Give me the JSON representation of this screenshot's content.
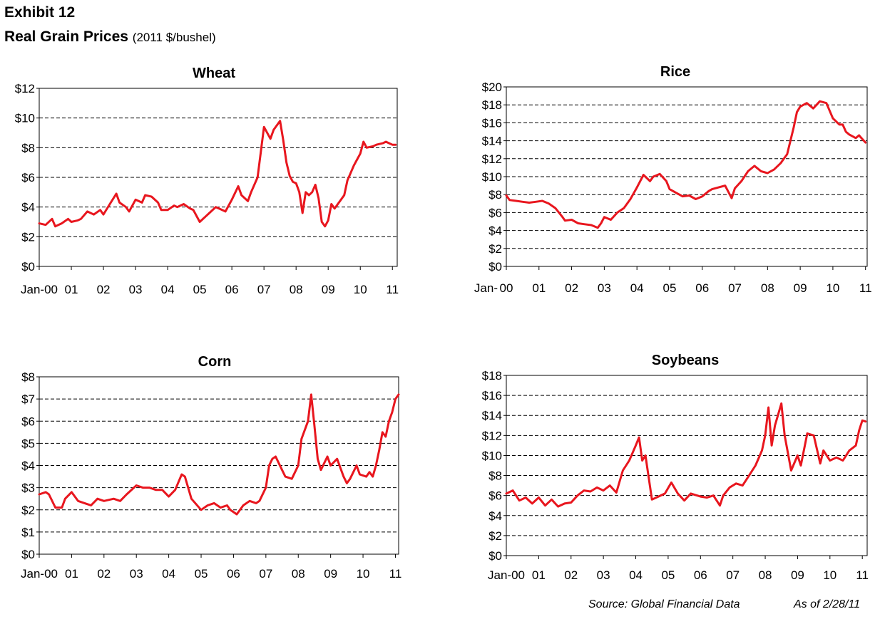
{
  "header": {
    "exhibit": "Exhibit 12",
    "title": "Real Grain Prices",
    "units": "(2011 $/bushel)"
  },
  "footer": {
    "source": "Source:  Global Financial Data",
    "as_of": "As of 2/28/11"
  },
  "colors": {
    "series": "#e8161e",
    "axis": "#000000",
    "grid": "#000000"
  },
  "chart_data": [
    {
      "id": "wheat",
      "type": "line",
      "title": "Wheat",
      "xlabel": "",
      "ylabel": "",
      "xlim": [
        2000.0,
        2011.15
      ],
      "ylim": [
        0,
        12
      ],
      "y_ticks": [
        0,
        2,
        4,
        6,
        8,
        10,
        12
      ],
      "y_tick_labels": [
        "$0",
        "$2",
        "$4",
        "$6",
        "$8",
        "$10",
        "$12"
      ],
      "x_ticks": [
        2000,
        2001,
        2002,
        2003,
        2004,
        2005,
        2006,
        2007,
        2008,
        2009,
        2010,
        2011
      ],
      "x_tick_labels": [
        "Jan-00",
        "01",
        "02",
        "03",
        "04",
        "05",
        "06",
        "07",
        "08",
        "09",
        "10",
        "11"
      ],
      "grid": "horizontal dashed",
      "series": [
        {
          "name": "Wheat",
          "x": [
            2000.0,
            2000.2,
            2000.4,
            2000.5,
            2000.7,
            2000.9,
            2001.0,
            2001.2,
            2001.3,
            2001.5,
            2001.7,
            2001.9,
            2002.0,
            2002.2,
            2002.4,
            2002.5,
            2002.7,
            2002.8,
            2003.0,
            2003.2,
            2003.3,
            2003.5,
            2003.7,
            2003.8,
            2004.0,
            2004.2,
            2004.3,
            2004.5,
            2004.7,
            2004.8,
            2005.0,
            2005.2,
            2005.3,
            2005.5,
            2005.7,
            2005.8,
            2006.0,
            2006.2,
            2006.3,
            2006.5,
            2006.6,
            2006.8,
            2007.0,
            2007.2,
            2007.3,
            2007.5,
            2007.6,
            2007.7,
            2007.8,
            2007.9,
            2008.0,
            2008.1,
            2008.2,
            2008.3,
            2008.4,
            2008.5,
            2008.6,
            2008.7,
            2008.8,
            2008.9,
            2009.0,
            2009.1,
            2009.2,
            2009.4,
            2009.5,
            2009.6,
            2009.7,
            2009.8,
            2009.9,
            2010.0,
            2010.1,
            2010.2,
            2010.4,
            2010.5,
            2010.7,
            2010.8,
            2010.9,
            2011.0,
            2011.1
          ],
          "values": [
            2.9,
            2.8,
            3.2,
            2.7,
            2.9,
            3.2,
            3.0,
            3.1,
            3.2,
            3.7,
            3.5,
            3.8,
            3.5,
            4.2,
            4.9,
            4.3,
            4.0,
            3.7,
            4.5,
            4.3,
            4.8,
            4.7,
            4.3,
            3.8,
            3.8,
            4.1,
            4.0,
            4.2,
            3.9,
            3.8,
            3.0,
            3.4,
            3.6,
            4.0,
            3.8,
            3.7,
            4.5,
            5.4,
            4.8,
            4.4,
            5.0,
            6.0,
            9.4,
            8.6,
            9.2,
            9.8,
            8.5,
            7.0,
            6.1,
            5.7,
            5.6,
            5.0,
            3.6,
            5.0,
            4.8,
            5.0,
            5.5,
            4.6,
            3.0,
            2.7,
            3.1,
            4.2,
            3.9,
            4.5,
            4.8,
            5.8,
            6.3,
            6.8,
            7.2,
            7.6,
            8.4,
            8.0,
            8.1,
            8.2,
            8.3,
            8.4,
            8.3,
            8.2,
            8.2
          ]
        }
      ]
    },
    {
      "id": "rice",
      "type": "line",
      "title": "Rice",
      "xlabel": "",
      "ylabel": "",
      "xlim": [
        2000.0,
        2011.05
      ],
      "ylim": [
        0,
        20
      ],
      "y_ticks": [
        0,
        2,
        4,
        6,
        8,
        10,
        12,
        14,
        16,
        18,
        20
      ],
      "y_tick_labels": [
        "$0",
        "$2",
        "$4",
        "$6",
        "$8",
        "$10",
        "$12",
        "$14",
        "$16",
        "$18",
        "$20"
      ],
      "x_ticks": [
        2000,
        2001,
        2002,
        2003,
        2004,
        2005,
        2006,
        2007,
        2008,
        2009,
        2010,
        2011
      ],
      "x_tick_labels": [
        "00",
        "01",
        "02",
        "03",
        "04",
        "05",
        "06",
        "07",
        "08",
        "09",
        "10",
        "11"
      ],
      "x_prefix": "Jan-",
      "grid": "horizontal dashed",
      "series": [
        {
          "name": "Rice",
          "x": [
            2000.0,
            2000.1,
            2000.3,
            2000.5,
            2000.7,
            2000.9,
            2001.1,
            2001.3,
            2001.5,
            2001.7,
            2001.8,
            2002.0,
            2002.2,
            2002.4,
            2002.6,
            2002.8,
            2002.9,
            2003.0,
            2003.2,
            2003.4,
            2003.6,
            2003.8,
            2004.0,
            2004.2,
            2004.4,
            2004.5,
            2004.7,
            2004.9,
            2005.0,
            2005.2,
            2005.4,
            2005.6,
            2005.8,
            2006.0,
            2006.2,
            2006.3,
            2006.5,
            2006.7,
            2006.9,
            2007.0,
            2007.2,
            2007.4,
            2007.6,
            2007.8,
            2008.0,
            2008.2,
            2008.4,
            2008.5,
            2008.6,
            2008.7,
            2008.8,
            2008.9,
            2009.0,
            2009.2,
            2009.4,
            2009.6,
            2009.8,
            2010.0,
            2010.2,
            2010.3,
            2010.4,
            2010.5,
            2010.6,
            2010.7,
            2010.8,
            2010.9,
            2011.0
          ],
          "values": [
            7.9,
            7.4,
            7.3,
            7.2,
            7.1,
            7.2,
            7.3,
            7.0,
            6.5,
            5.6,
            5.1,
            5.2,
            4.8,
            4.7,
            4.6,
            4.3,
            4.8,
            5.5,
            5.2,
            6.0,
            6.5,
            7.5,
            8.8,
            10.2,
            9.5,
            10.0,
            10.3,
            9.5,
            8.6,
            8.2,
            7.8,
            7.9,
            7.5,
            7.8,
            8.4,
            8.6,
            8.8,
            9.0,
            7.6,
            8.7,
            9.5,
            10.6,
            11.2,
            10.6,
            10.4,
            10.8,
            11.5,
            12.0,
            12.5,
            14.0,
            15.5,
            17.2,
            17.8,
            18.2,
            17.6,
            18.4,
            18.2,
            16.5,
            15.8,
            15.8,
            15.0,
            14.7,
            14.5,
            14.3,
            14.6,
            14.2,
            13.8
          ]
        }
      ]
    },
    {
      "id": "corn",
      "type": "line",
      "title": "Corn",
      "xlabel": "",
      "ylabel": "",
      "xlim": [
        2000.0,
        2011.1
      ],
      "ylim": [
        0,
        8
      ],
      "y_ticks": [
        0,
        1,
        2,
        3,
        4,
        5,
        6,
        7,
        8
      ],
      "y_tick_labels": [
        "$0",
        "$1",
        "$2",
        "$3",
        "$4",
        "$5",
        "$6",
        "$7",
        "$8"
      ],
      "x_ticks": [
        2000,
        2001,
        2002,
        2003,
        2004,
        2005,
        2006,
        2007,
        2008,
        2009,
        2010,
        2011
      ],
      "x_tick_labels": [
        "Jan-00",
        "01",
        "02",
        "03",
        "04",
        "05",
        "06",
        "07",
        "08",
        "09",
        "10",
        "11"
      ],
      "grid": "horizontal dashed",
      "series": [
        {
          "name": "Corn",
          "x": [
            2000.0,
            2000.2,
            2000.3,
            2000.5,
            2000.7,
            2000.8,
            2001.0,
            2001.2,
            2001.4,
            2001.6,
            2001.8,
            2002.0,
            2002.3,
            2002.5,
            2002.7,
            2003.0,
            2003.2,
            2003.4,
            2003.6,
            2003.8,
            2004.0,
            2004.2,
            2004.4,
            2004.5,
            2004.7,
            2005.0,
            2005.2,
            2005.4,
            2005.6,
            2005.8,
            2005.9,
            2006.1,
            2006.3,
            2006.5,
            2006.7,
            2006.8,
            2007.0,
            2007.1,
            2007.2,
            2007.3,
            2007.5,
            2007.6,
            2007.8,
            2008.0,
            2008.1,
            2008.3,
            2008.4,
            2008.5,
            2008.6,
            2008.7,
            2008.9,
            2009.0,
            2009.2,
            2009.4,
            2009.5,
            2009.6,
            2009.8,
            2009.9,
            2010.1,
            2010.2,
            2010.3,
            2010.4,
            2010.5,
            2010.6,
            2010.7,
            2010.8,
            2010.9,
            2011.0,
            2011.1
          ],
          "values": [
            2.7,
            2.8,
            2.7,
            2.1,
            2.1,
            2.5,
            2.8,
            2.4,
            2.3,
            2.2,
            2.5,
            2.4,
            2.5,
            2.4,
            2.7,
            3.1,
            3.0,
            3.0,
            2.9,
            2.9,
            2.6,
            2.9,
            3.6,
            3.5,
            2.5,
            2.0,
            2.2,
            2.3,
            2.1,
            2.2,
            2.0,
            1.8,
            2.2,
            2.4,
            2.3,
            2.4,
            3.0,
            4.0,
            4.3,
            4.4,
            3.8,
            3.5,
            3.4,
            4.0,
            5.2,
            6.0,
            7.2,
            5.8,
            4.3,
            3.8,
            4.4,
            4.0,
            4.3,
            3.5,
            3.2,
            3.4,
            4.0,
            3.6,
            3.5,
            3.7,
            3.5,
            4.0,
            4.7,
            5.5,
            5.3,
            6.0,
            6.4,
            7.0,
            7.2
          ]
        }
      ]
    },
    {
      "id": "soybeans",
      "type": "line",
      "title": "Soybeans",
      "xlabel": "",
      "ylabel": "",
      "xlim": [
        2000.0,
        2011.15
      ],
      "ylim": [
        0,
        18
      ],
      "y_ticks": [
        0,
        2,
        4,
        6,
        8,
        10,
        12,
        14,
        16,
        18
      ],
      "y_tick_labels": [
        "$0",
        "$2",
        "$4",
        "$6",
        "$8",
        "$10",
        "$12",
        "$14",
        "$16",
        "$18"
      ],
      "x_ticks": [
        2000,
        2001,
        2002,
        2003,
        2004,
        2005,
        2006,
        2007,
        2008,
        2009,
        2010,
        2011
      ],
      "x_tick_labels": [
        "Jan-00",
        "01",
        "02",
        "03",
        "04",
        "05",
        "06",
        "07",
        "08",
        "09",
        "10",
        "11"
      ],
      "grid": "horizontal dashed",
      "series": [
        {
          "name": "Soybeans",
          "x": [
            2000.0,
            2000.2,
            2000.4,
            2000.6,
            2000.8,
            2001.0,
            2001.2,
            2001.4,
            2001.6,
            2001.8,
            2002.0,
            2002.2,
            2002.4,
            2002.6,
            2002.8,
            2003.0,
            2003.2,
            2003.4,
            2003.6,
            2003.8,
            2004.0,
            2004.1,
            2004.2,
            2004.3,
            2004.5,
            2004.7,
            2004.9,
            2005.1,
            2005.3,
            2005.5,
            2005.7,
            2006.0,
            2006.2,
            2006.4,
            2006.6,
            2006.7,
            2006.9,
            2007.1,
            2007.3,
            2007.5,
            2007.7,
            2007.9,
            2008.0,
            2008.1,
            2008.2,
            2008.3,
            2008.5,
            2008.6,
            2008.8,
            2009.0,
            2009.1,
            2009.3,
            2009.5,
            2009.7,
            2009.8,
            2010.0,
            2010.2,
            2010.4,
            2010.6,
            2010.8,
            2010.9,
            2011.0,
            2011.1
          ],
          "values": [
            6.2,
            6.5,
            5.5,
            5.8,
            5.2,
            5.8,
            5.0,
            5.6,
            4.9,
            5.2,
            5.3,
            6.0,
            6.5,
            6.4,
            6.8,
            6.5,
            7.0,
            6.3,
            8.5,
            9.5,
            11.0,
            11.8,
            9.5,
            10.0,
            5.6,
            5.9,
            6.2,
            7.3,
            6.2,
            5.5,
            6.2,
            5.9,
            5.8,
            6.0,
            5.0,
            6.0,
            6.8,
            7.2,
            7.0,
            8.0,
            9.0,
            10.5,
            12.0,
            14.8,
            11.0,
            13.0,
            15.2,
            12.0,
            8.5,
            10.0,
            9.0,
            12.2,
            12.0,
            9.2,
            10.5,
            9.5,
            9.8,
            9.5,
            10.5,
            11.0,
            12.5,
            13.5,
            13.4
          ]
        }
      ]
    }
  ]
}
